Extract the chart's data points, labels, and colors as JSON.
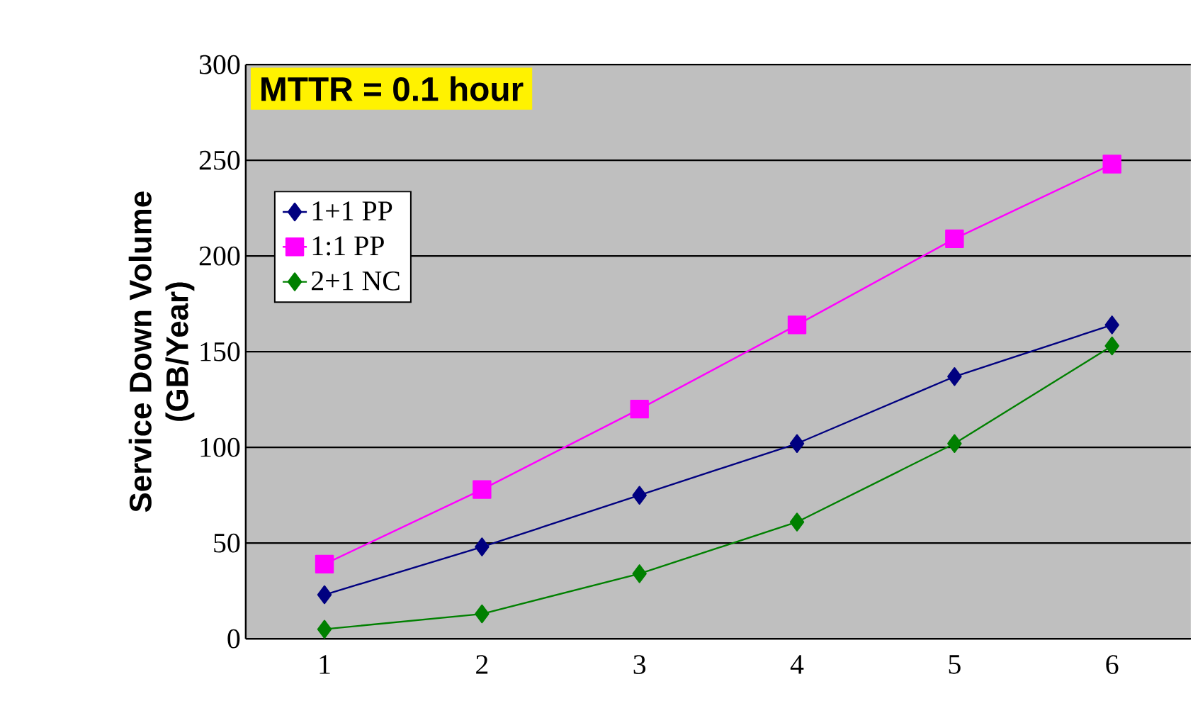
{
  "chart_data": {
    "type": "line",
    "ylabel": "Service Down Volume\n(GB/Year)",
    "categories": [
      "1",
      "2",
      "3",
      "4",
      "5",
      "6"
    ],
    "ylim": [
      0,
      300
    ],
    "yticks": [
      0,
      50,
      100,
      150,
      200,
      250,
      300
    ],
    "grid": "y",
    "legend": "left",
    "annotations": [
      "MTTR = 0.1 hour"
    ],
    "series": [
      {
        "name": "1+1 PP",
        "color": "#000080",
        "marker": "diamond",
        "values": [
          23,
          48,
          75,
          102,
          137,
          164
        ]
      },
      {
        "name": "1:1 PP",
        "color": "#ff00ff",
        "marker": "square",
        "values": [
          39,
          78,
          120,
          164,
          209,
          248
        ]
      },
      {
        "name": "2+1 NC",
        "color": "#008000",
        "marker": "diamond",
        "values": [
          5,
          13,
          34,
          61,
          102,
          153
        ]
      }
    ]
  }
}
